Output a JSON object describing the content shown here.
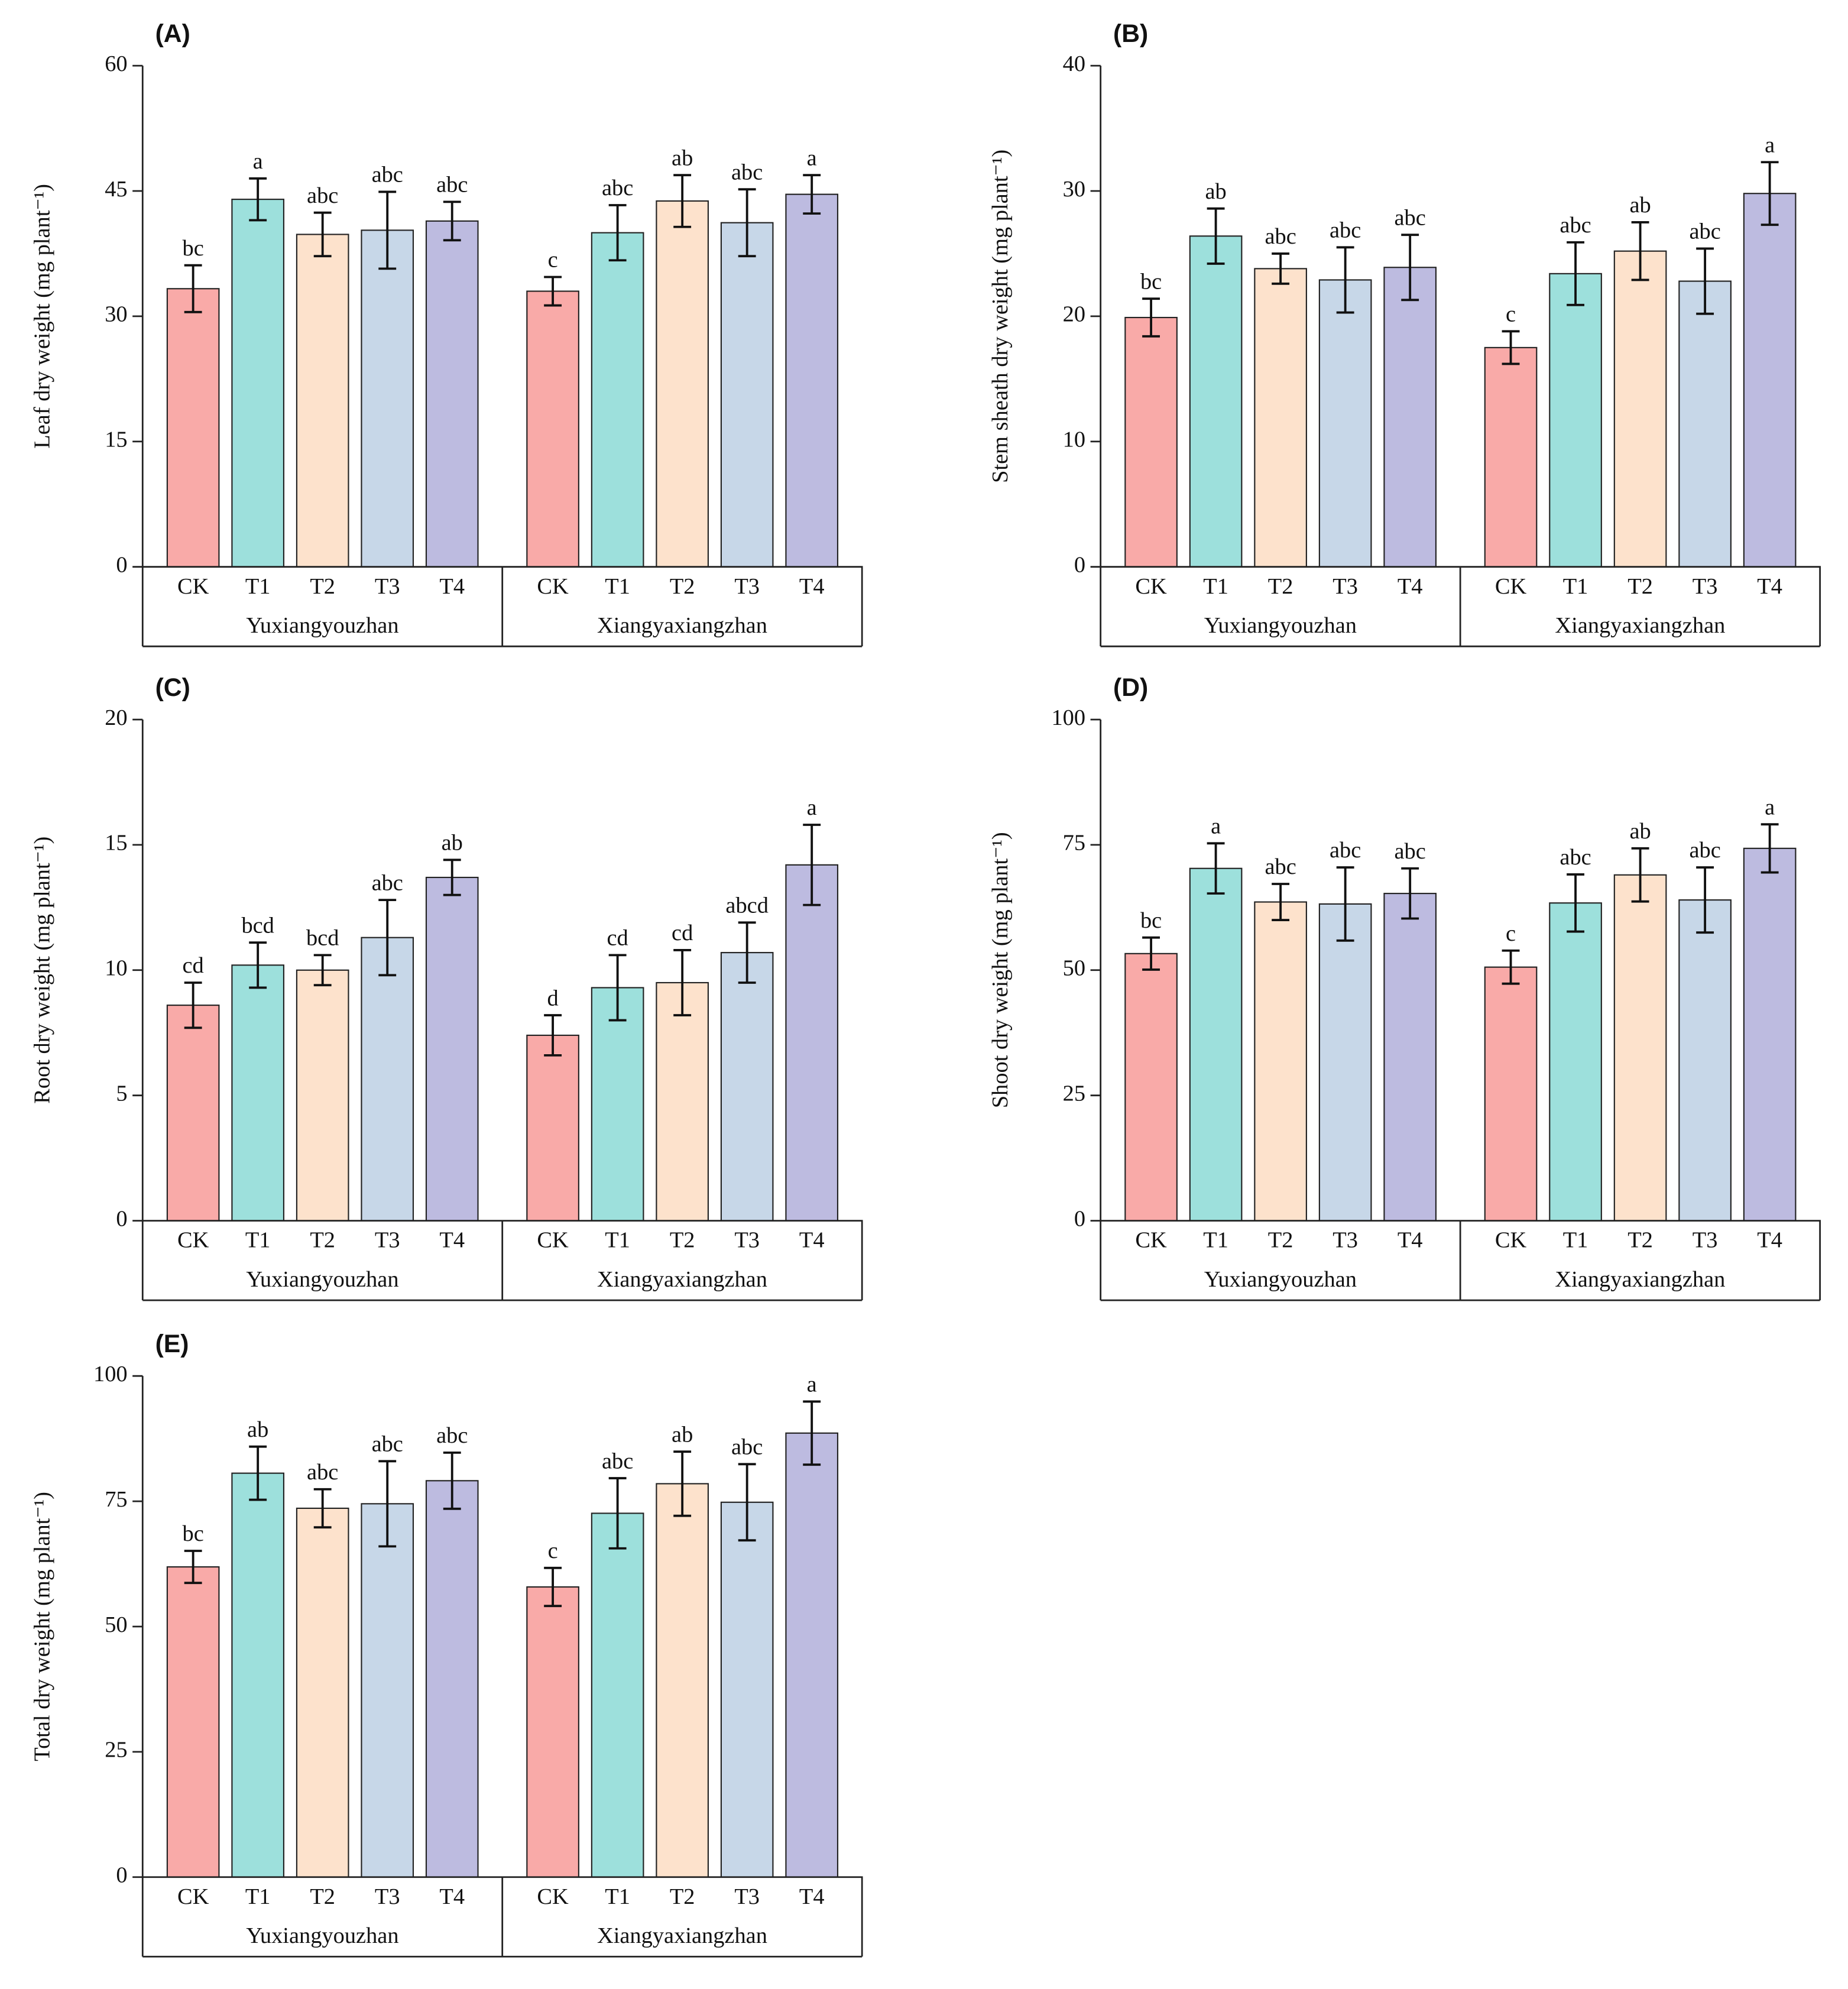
{
  "chart_data": [
    {
      "type": "bar",
      "panel_label": "(A)",
      "ylabel": "Leaf dry weight (mg plant⁻¹)",
      "categories": [
        "CK",
        "T1",
        "T2",
        "T3",
        "T4",
        "CK",
        "T1",
        "T2",
        "T3",
        "T4"
      ],
      "groups": [
        "Yuxiangyouzhan",
        "Xiangyaxiangzhan"
      ],
      "colors": [
        "#f9aaa8",
        "#9de0dc",
        "#fde2cc",
        "#c7d7e8",
        "#bdbbe0"
      ],
      "values": [
        33.3,
        44.0,
        39.8,
        40.3,
        41.4,
        33.0,
        40.0,
        43.8,
        41.2,
        44.6
      ],
      "errors": [
        2.8,
        2.5,
        2.6,
        4.6,
        2.3,
        1.7,
        3.3,
        3.1,
        4.0,
        2.3
      ],
      "letters": [
        "bc",
        "a",
        "abc",
        "abc",
        "abc",
        "c",
        "abc",
        "ab",
        "abc",
        "a"
      ],
      "ylim": [
        0,
        60
      ],
      "yticks": [
        0,
        15,
        30,
        45,
        60
      ]
    },
    {
      "type": "bar",
      "panel_label": "(B)",
      "ylabel": "Stem sheath dry weight (mg plant⁻¹)",
      "categories": [
        "CK",
        "T1",
        "T2",
        "T3",
        "T4",
        "CK",
        "T1",
        "T2",
        "T3",
        "T4"
      ],
      "groups": [
        "Yuxiangyouzhan",
        "Xiangyaxiangzhan"
      ],
      "colors": [
        "#f9aaa8",
        "#9de0dc",
        "#fde2cc",
        "#c7d7e8",
        "#bdbbe0"
      ],
      "values": [
        19.9,
        26.4,
        23.8,
        22.9,
        23.9,
        17.5,
        23.4,
        25.2,
        22.8,
        29.8
      ],
      "errors": [
        1.5,
        2.2,
        1.2,
        2.6,
        2.6,
        1.3,
        2.5,
        2.3,
        2.6,
        2.5
      ],
      "letters": [
        "bc",
        "ab",
        "abc",
        "abc",
        "abc",
        "c",
        "abc",
        "ab",
        "abc",
        "a"
      ],
      "ylim": [
        0,
        40
      ],
      "yticks": [
        0,
        10,
        20,
        30,
        40
      ]
    },
    {
      "type": "bar",
      "panel_label": "(C)",
      "ylabel": "Root dry weight (mg plant⁻¹)",
      "categories": [
        "CK",
        "T1",
        "T2",
        "T3",
        "T4",
        "CK",
        "T1",
        "T2",
        "T3",
        "T4"
      ],
      "groups": [
        "Yuxiangyouzhan",
        "Xiangyaxiangzhan"
      ],
      "colors": [
        "#f9aaa8",
        "#9de0dc",
        "#fde2cc",
        "#c7d7e8",
        "#bdbbe0"
      ],
      "values": [
        8.6,
        10.2,
        10.0,
        11.3,
        13.7,
        7.4,
        9.3,
        9.5,
        10.7,
        14.2
      ],
      "errors": [
        0.9,
        0.9,
        0.6,
        1.5,
        0.7,
        0.8,
        1.3,
        1.3,
        1.2,
        1.6
      ],
      "letters": [
        "cd",
        "bcd",
        "bcd",
        "abc",
        "ab",
        "d",
        "cd",
        "cd",
        "abcd",
        "a"
      ],
      "ylim": [
        0,
        20
      ],
      "yticks": [
        0,
        5,
        10,
        15,
        20
      ]
    },
    {
      "type": "bar",
      "panel_label": "(D)",
      "ylabel": "Shoot dry weight (mg plant⁻¹)",
      "categories": [
        "CK",
        "T1",
        "T2",
        "T3",
        "T4",
        "CK",
        "T1",
        "T2",
        "T3",
        "T4"
      ],
      "groups": [
        "Yuxiangyouzhan",
        "Xiangyaxiangzhan"
      ],
      "colors": [
        "#f9aaa8",
        "#9de0dc",
        "#fde2cc",
        "#c7d7e8",
        "#bdbbe0"
      ],
      "values": [
        53.3,
        70.3,
        63.6,
        63.2,
        65.3,
        50.6,
        63.4,
        69.0,
        64.0,
        74.3
      ],
      "errors": [
        3.2,
        5.0,
        3.6,
        7.3,
        5.0,
        3.3,
        5.7,
        5.3,
        6.5,
        4.8
      ],
      "letters": [
        "bc",
        "a",
        "abc",
        "abc",
        "abc",
        "c",
        "abc",
        "ab",
        "abc",
        "a"
      ],
      "ylim": [
        0,
        100
      ],
      "yticks": [
        0,
        25,
        50,
        75,
        100
      ]
    },
    {
      "type": "bar",
      "panel_label": "(E)",
      "ylabel": "Total dry weight (mg plant⁻¹)",
      "categories": [
        "CK",
        "T1",
        "T2",
        "T3",
        "T4",
        "CK",
        "T1",
        "T2",
        "T3",
        "T4"
      ],
      "groups": [
        "Yuxiangyouzhan",
        "Xiangyaxiangzhan"
      ],
      "colors": [
        "#f9aaa8",
        "#9de0dc",
        "#fde2cc",
        "#c7d7e8",
        "#bdbbe0"
      ],
      "values": [
        61.9,
        80.6,
        73.6,
        74.5,
        79.1,
        57.9,
        72.6,
        78.5,
        74.8,
        88.6
      ],
      "errors": [
        3.2,
        5.3,
        3.8,
        8.5,
        5.6,
        3.8,
        7.0,
        6.4,
        7.6,
        6.3
      ],
      "letters": [
        "bc",
        "ab",
        "abc",
        "abc",
        "abc",
        "c",
        "abc",
        "ab",
        "abc",
        "a"
      ],
      "ylim": [
        0,
        100
      ],
      "yticks": [
        0,
        25,
        50,
        75,
        100
      ]
    }
  ]
}
